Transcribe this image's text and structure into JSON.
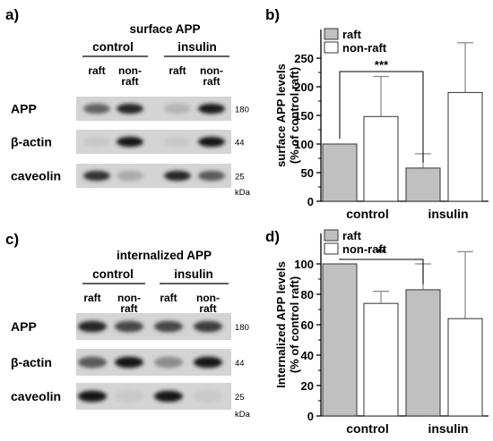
{
  "panels": {
    "a": {
      "letter": "a)",
      "title": "surface APP",
      "groups": [
        "control",
        "insulin"
      ],
      "lanes": [
        "raft",
        "non-\nraft",
        "raft",
        "non-\nraft"
      ],
      "rows": [
        {
          "label": "APP",
          "kda": "180",
          "intensity": [
            0.55,
            0.85,
            0.15,
            0.9
          ]
        },
        {
          "label": "β-actin",
          "kda": "44",
          "intensity": [
            0.05,
            0.95,
            0.05,
            0.95
          ]
        },
        {
          "label": "caveolin",
          "kda": "25",
          "intensity": [
            0.8,
            0.2,
            0.85,
            0.6
          ]
        }
      ],
      "kda_unit": "kDa"
    },
    "c": {
      "letter": "c)",
      "title": "internalized APP",
      "groups": [
        "control",
        "insulin"
      ],
      "lanes": [
        "raft",
        "non-\nraft",
        "raft",
        "non-\nraft"
      ],
      "rows": [
        {
          "label": "APP",
          "kda": "180",
          "intensity": [
            0.85,
            0.7,
            0.7,
            0.75
          ]
        },
        {
          "label": "β-actin",
          "kda": "44",
          "intensity": [
            0.6,
            0.95,
            0.35,
            0.95
          ]
        },
        {
          "label": "caveolin",
          "kda": "25",
          "intensity": [
            0.95,
            0.05,
            0.95,
            0.05
          ]
        }
      ],
      "kda_unit": "kDa"
    }
  },
  "chart_data": [
    {
      "letter": "b)",
      "type": "bar",
      "categories": [
        "control",
        "insulin"
      ],
      "series": [
        {
          "name": "raft",
          "values": [
            100,
            58
          ],
          "errors": [
            0,
            25
          ],
          "color": "#c0c0c0"
        },
        {
          "name": "non-raft",
          "values": [
            148,
            190
          ],
          "errors": [
            70,
            87
          ],
          "color": "#ffffff"
        }
      ],
      "ylabel": "surface APP levels\n(% of control raft)",
      "ylim": [
        0,
        300
      ],
      "yticks": [
        0,
        50,
        100,
        150,
        200,
        250
      ],
      "significance": {
        "label": "***",
        "from": "control raft",
        "to": "insulin raft"
      },
      "legend": "top-left"
    },
    {
      "letter": "d)",
      "type": "bar",
      "categories": [
        "control",
        "insulin"
      ],
      "series": [
        {
          "name": "raft",
          "values": [
            100,
            83
          ],
          "errors": [
            0,
            17
          ],
          "color": "#c0c0c0"
        },
        {
          "name": "non-raft",
          "values": [
            74,
            64
          ],
          "errors": [
            8,
            44
          ],
          "color": "#ffffff"
        }
      ],
      "ylabel": "Internalized APP levels\n(% of control raft)",
      "ylim": [
        0,
        120
      ],
      "yticks": [
        0,
        20,
        40,
        60,
        80,
        100
      ],
      "significance": {
        "label": "**",
        "from": "control raft",
        "to": "insulin raft"
      },
      "legend": "top-left"
    }
  ]
}
